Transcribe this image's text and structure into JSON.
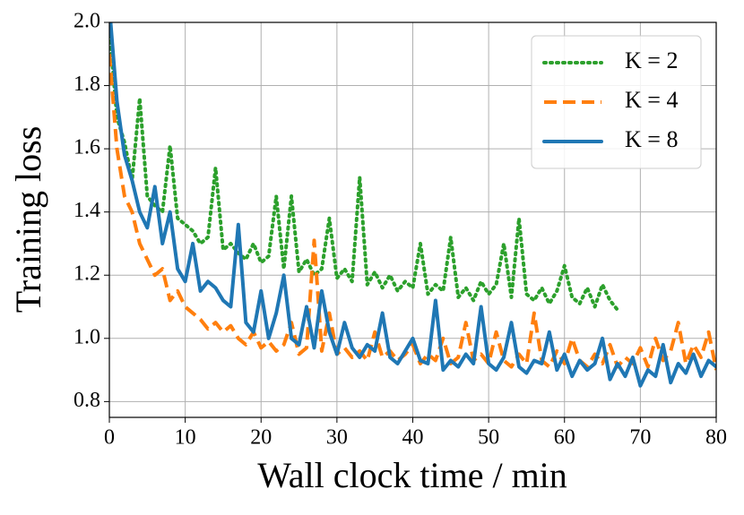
{
  "chart_data": {
    "type": "line",
    "xlabel": "Wall clock time / min",
    "ylabel": "Training loss",
    "x": [
      0,
      1,
      2,
      3,
      4,
      5,
      6,
      7,
      8,
      9,
      10,
      11,
      12,
      13,
      14,
      15,
      16,
      17,
      18,
      19,
      20,
      21,
      22,
      23,
      24,
      25,
      26,
      27,
      28,
      29,
      30,
      31,
      32,
      33,
      34,
      35,
      36,
      37,
      38,
      39,
      40,
      41,
      42,
      43,
      44,
      45,
      46,
      47,
      48,
      49,
      50,
      51,
      52,
      53,
      54,
      55,
      56,
      57,
      58,
      59,
      60,
      61,
      62,
      63,
      64,
      65,
      66,
      67,
      68,
      69,
      70,
      71,
      72,
      73,
      74,
      75,
      76,
      77,
      78,
      79,
      80
    ],
    "series": [
      {
        "name": "K = 2",
        "color": "#2ca02c",
        "style": "dotted",
        "values": [
          1.98,
          1.7,
          1.62,
          1.5,
          1.76,
          1.45,
          1.42,
          1.4,
          1.61,
          1.38,
          1.36,
          1.34,
          1.3,
          1.32,
          1.54,
          1.28,
          1.3,
          1.27,
          1.25,
          1.3,
          1.24,
          1.26,
          1.45,
          1.22,
          1.45,
          1.21,
          1.25,
          1.2,
          1.22,
          1.38,
          1.19,
          1.22,
          1.18,
          1.51,
          1.17,
          1.21,
          1.16,
          1.2,
          1.15,
          1.18,
          1.16,
          1.3,
          1.14,
          1.17,
          1.15,
          1.32,
          1.13,
          1.16,
          1.12,
          1.18,
          1.14,
          1.17,
          1.3,
          1.13,
          1.38,
          1.14,
          1.12,
          1.16,
          1.11,
          1.15,
          1.23,
          1.13,
          1.11,
          1.16,
          1.1,
          1.17,
          1.12,
          1.09,
          null,
          null,
          null,
          null,
          null,
          null,
          null,
          null,
          null,
          null,
          null,
          null,
          null
        ]
      },
      {
        "name": "K = 4",
        "color": "#ff7f0e",
        "style": "dashed",
        "values": [
          1.9,
          1.6,
          1.45,
          1.4,
          1.3,
          1.25,
          1.2,
          1.22,
          1.12,
          1.15,
          1.1,
          1.08,
          1.06,
          1.03,
          1.05,
          1.02,
          1.04,
          1.0,
          0.98,
          1.02,
          0.97,
          0.99,
          0.96,
          0.98,
          1.05,
          0.95,
          0.97,
          1.31,
          0.96,
          1.08,
          0.95,
          0.97,
          0.94,
          0.96,
          0.93,
          1.02,
          0.94,
          0.96,
          0.93,
          0.95,
          0.98,
          0.92,
          0.95,
          0.93,
          1.0,
          0.92,
          0.94,
          1.05,
          0.93,
          0.95,
          0.92,
          1.02,
          0.93,
          0.91,
          0.95,
          0.92,
          1.08,
          0.93,
          0.91,
          0.96,
          0.92,
          1.0,
          0.93,
          0.91,
          0.95,
          0.92,
          0.98,
          0.91,
          0.94,
          0.92,
          0.97,
          0.91,
          1.0,
          0.93,
          0.96,
          1.05,
          0.92,
          0.98,
          0.94,
          1.02,
          0.9
        ]
      },
      {
        "name": "K = 8",
        "color": "#1f77b4",
        "style": "solid",
        "values": [
          2.05,
          1.75,
          1.58,
          1.5,
          1.4,
          1.35,
          1.48,
          1.3,
          1.4,
          1.22,
          1.18,
          1.3,
          1.15,
          1.18,
          1.16,
          1.12,
          1.1,
          1.36,
          1.05,
          1.02,
          1.15,
          1.0,
          1.08,
          1.2,
          1.0,
          0.98,
          1.1,
          0.97,
          1.15,
          1.02,
          0.95,
          1.05,
          0.97,
          0.94,
          0.98,
          0.96,
          1.08,
          0.94,
          0.92,
          0.96,
          1.0,
          0.93,
          0.92,
          1.12,
          0.9,
          0.93,
          0.91,
          0.95,
          0.92,
          1.1,
          0.92,
          0.9,
          0.94,
          1.05,
          0.91,
          0.89,
          0.93,
          0.92,
          1.02,
          0.9,
          0.95,
          0.88,
          0.93,
          0.9,
          0.92,
          1.0,
          0.87,
          0.92,
          0.88,
          0.94,
          0.85,
          0.9,
          0.88,
          0.98,
          0.86,
          0.92,
          0.89,
          0.95,
          0.88,
          0.93,
          0.91
        ]
      }
    ],
    "xlim": [
      0,
      80
    ],
    "xticks": [
      0,
      10,
      20,
      30,
      40,
      50,
      60,
      70,
      80
    ],
    "ylim": [
      0.75,
      2.0
    ],
    "yticks": [
      0.8,
      {
        "value": 1.0,
        "label": "1.0"
      },
      1.2,
      1.4,
      1.6,
      1.8,
      {
        "value": 2.0,
        "label": "2.0"
      }
    ],
    "grid": true,
    "legend": "upper right"
  }
}
